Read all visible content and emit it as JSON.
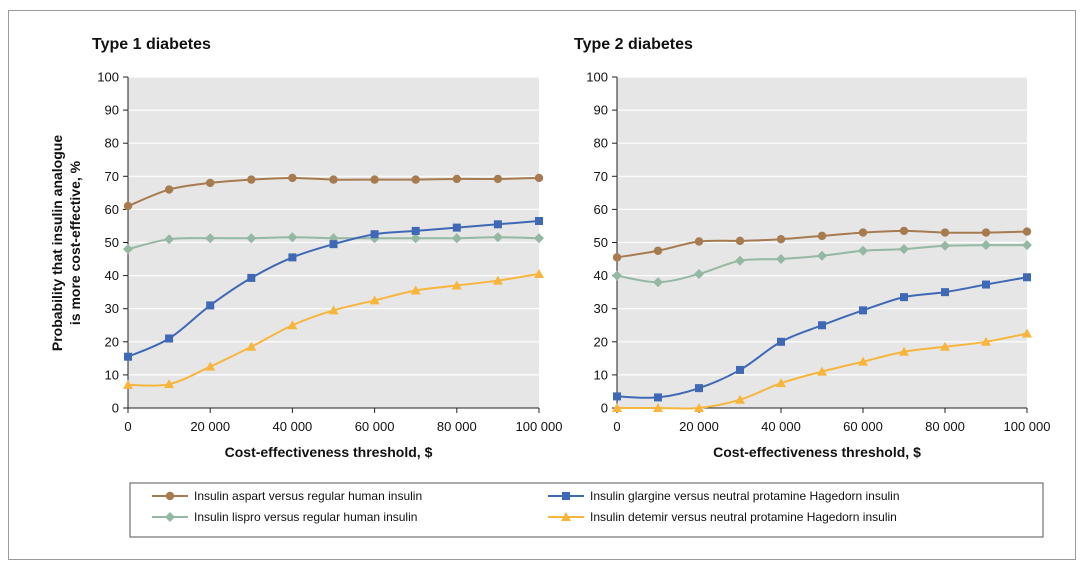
{
  "chart_data": {
    "type": "line",
    "shared_ylabel": [
      "Probability that insulin analogue",
      "is more cost-effective, %"
    ],
    "panels": [
      {
        "title": "Type 1 diabetes",
        "xlabel": "Cost-effectiveness threshold, $",
        "xlim": [
          0,
          100000
        ],
        "ylim": [
          0,
          100
        ],
        "xticks": [
          0,
          20000,
          40000,
          60000,
          80000,
          100000
        ],
        "xtick_labels": [
          "0",
          "20 000",
          "40 000",
          "60 000",
          "80 000",
          "100 000"
        ],
        "yticks": [
          0,
          10,
          20,
          30,
          40,
          50,
          60,
          70,
          80,
          90,
          100
        ],
        "x": [
          0,
          10000,
          20000,
          30000,
          40000,
          50000,
          60000,
          70000,
          80000,
          90000,
          100000
        ],
        "series": [
          {
            "key": "aspart",
            "values": [
              61,
              66,
              68,
              69,
              69.5,
              69,
              69,
              69,
              69.2,
              69.2,
              69.5
            ]
          },
          {
            "key": "lispro",
            "values": [
              48,
              51,
              51.3,
              51.3,
              51.6,
              51.3,
              51.3,
              51.3,
              51.3,
              51.6,
              51.3
            ]
          },
          {
            "key": "glargine",
            "values": [
              15.5,
              21,
              31,
              39.3,
              45.5,
              49.5,
              52.5,
              53.5,
              54.5,
              55.5,
              56.5
            ]
          },
          {
            "key": "detemir",
            "values": [
              7,
              7.2,
              12.5,
              18.5,
              25,
              29.5,
              32.5,
              35.5,
              37,
              38.5,
              40.5
            ]
          }
        ]
      },
      {
        "title": "Type 2 diabetes",
        "xlabel": "Cost-effectiveness threshold, $",
        "xlim": [
          0,
          100000
        ],
        "ylim": [
          0,
          100
        ],
        "xticks": [
          0,
          20000,
          40000,
          60000,
          80000,
          100000
        ],
        "xtick_labels": [
          "0",
          "20 000",
          "40 000",
          "60 000",
          "80 000",
          "100 000"
        ],
        "yticks": [
          0,
          10,
          20,
          30,
          40,
          50,
          60,
          70,
          80,
          90,
          100
        ],
        "x": [
          0,
          10000,
          20000,
          30000,
          40000,
          50000,
          60000,
          70000,
          80000,
          90000,
          100000
        ],
        "series": [
          {
            "key": "aspart",
            "values": [
              45.5,
              47.5,
              50.3,
              50.5,
              51,
              52,
              53,
              53.5,
              53,
              53,
              53.3
            ]
          },
          {
            "key": "lispro",
            "values": [
              40,
              38,
              40.5,
              44.5,
              45,
              46,
              47.5,
              48,
              49,
              49.2,
              49.2
            ]
          },
          {
            "key": "glargine",
            "values": [
              3.5,
              3.2,
              6,
              11.5,
              20,
              25,
              29.5,
              33.5,
              35,
              37.3,
              39.5
            ]
          },
          {
            "key": "detemir",
            "values": [
              0,
              0,
              0,
              2.5,
              7.5,
              11,
              14,
              17,
              18.5,
              20,
              22.5
            ]
          }
        ]
      }
    ],
    "legend": {
      "placement": "bottom",
      "entries": [
        {
          "key": "aspart",
          "name": "Insulin aspart versus regular human insulin",
          "color": "#a67b4f",
          "marker": "circle"
        },
        {
          "key": "lispro",
          "name": "Insulin lispro versus regular human insulin",
          "color": "#94b8a1",
          "marker": "diamond"
        },
        {
          "key": "glargine",
          "name": "Insulin glargine versus neutral protamine Hagedorn insulin",
          "color": "#3f68b5",
          "marker": "square"
        },
        {
          "key": "detemir",
          "name": "Insulin detemir versus neutral protamine Hagedorn insulin",
          "color": "#f7b53c",
          "marker": "triangle"
        }
      ]
    },
    "plot_background": "#e6e6e6",
    "grid": "horizontal"
  }
}
